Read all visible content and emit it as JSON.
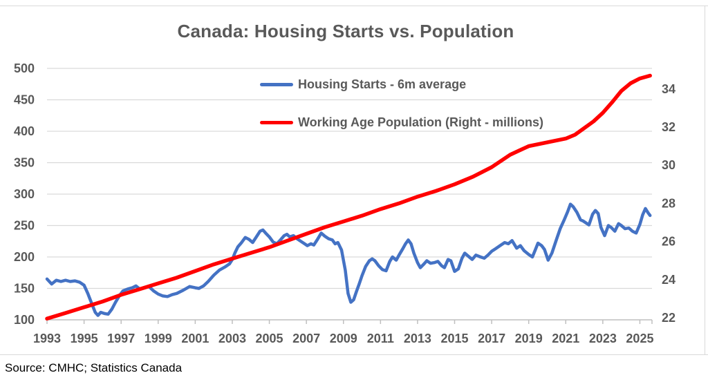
{
  "title": "Canada: Housing Starts vs. Population",
  "source_note": "Source: CMHC; Statistics Canada",
  "colors": {
    "housing_starts": "#4472C4",
    "population": "#FF0000",
    "gridline": "#D9D9D9",
    "axis_line": "#BFBFBF",
    "text": "#595959",
    "source_text": "#000000"
  },
  "legend": {
    "items": [
      {
        "label": "Housing Starts - 6m average",
        "color": "#4472C4"
      },
      {
        "label": "Working Age Population (Right - millions)",
        "color": "#FF0000"
      }
    ]
  },
  "axes": {
    "left": {
      "ticks": [
        100,
        150,
        200,
        250,
        300,
        350,
        400,
        450,
        500
      ]
    },
    "right": {
      "ticks": [
        22,
        24,
        26,
        28,
        30,
        32,
        34
      ]
    },
    "x": {
      "ticks": [
        1993,
        1995,
        1997,
        1999,
        2001,
        2003,
        2005,
        2007,
        2009,
        2011,
        2013,
        2015,
        2017,
        2019,
        2021,
        2023,
        2025
      ]
    }
  },
  "chart_data": {
    "type": "line",
    "title": "Canada: Housing Starts vs. Population",
    "grid": true,
    "legend_position": "top-center-inside",
    "x_range": [
      1993,
      2025.58
    ],
    "left_range": [
      100,
      500
    ],
    "right_range": [
      21.89,
      35.08
    ],
    "series": [
      {
        "name": "Housing Starts - 6m average",
        "axis": "left",
        "color": "#4472C4",
        "points": [
          [
            1993.0,
            165
          ],
          [
            1993.25,
            157
          ],
          [
            1993.5,
            163
          ],
          [
            1993.75,
            161
          ],
          [
            1994.0,
            163
          ],
          [
            1994.25,
            161
          ],
          [
            1994.5,
            162
          ],
          [
            1994.75,
            160
          ],
          [
            1995.0,
            155
          ],
          [
            1995.2,
            142
          ],
          [
            1995.4,
            127
          ],
          [
            1995.6,
            112
          ],
          [
            1995.75,
            107
          ],
          [
            1995.9,
            112
          ],
          [
            1996.1,
            110
          ],
          [
            1996.3,
            109
          ],
          [
            1996.5,
            117
          ],
          [
            1996.7,
            128
          ],
          [
            1996.9,
            138
          ],
          [
            1997.1,
            146
          ],
          [
            1997.35,
            149
          ],
          [
            1997.6,
            151
          ],
          [
            1997.8,
            154
          ],
          [
            1998.0,
            149
          ],
          [
            1998.25,
            151
          ],
          [
            1998.5,
            153
          ],
          [
            1998.75,
            146
          ],
          [
            1999.0,
            141
          ],
          [
            1999.25,
            138
          ],
          [
            1999.5,
            137
          ],
          [
            1999.75,
            140
          ],
          [
            2000.0,
            142
          ],
          [
            2000.35,
            147
          ],
          [
            2000.7,
            153
          ],
          [
            2001.0,
            151
          ],
          [
            2001.2,
            150
          ],
          [
            2001.45,
            154
          ],
          [
            2001.7,
            161
          ],
          [
            2002.0,
            171
          ],
          [
            2002.3,
            179
          ],
          [
            2002.6,
            184
          ],
          [
            2002.85,
            189
          ],
          [
            2003.0,
            196
          ],
          [
            2003.15,
            207
          ],
          [
            2003.3,
            216
          ],
          [
            2003.5,
            223
          ],
          [
            2003.7,
            231
          ],
          [
            2003.9,
            228
          ],
          [
            2004.1,
            223
          ],
          [
            2004.3,
            232
          ],
          [
            2004.5,
            241
          ],
          [
            2004.65,
            243
          ],
          [
            2004.8,
            238
          ],
          [
            2005.0,
            232
          ],
          [
            2005.2,
            224
          ],
          [
            2005.4,
            221
          ],
          [
            2005.6,
            227
          ],
          [
            2005.8,
            234
          ],
          [
            2005.95,
            236
          ],
          [
            2006.1,
            232
          ],
          [
            2006.3,
            234
          ],
          [
            2006.5,
            229
          ],
          [
            2006.7,
            225
          ],
          [
            2006.9,
            221
          ],
          [
            2007.05,
            218
          ],
          [
            2007.25,
            221
          ],
          [
            2007.4,
            219
          ],
          [
            2007.6,
            228
          ],
          [
            2007.8,
            238
          ],
          [
            2008.0,
            233
          ],
          [
            2008.2,
            229
          ],
          [
            2008.4,
            227
          ],
          [
            2008.55,
            221
          ],
          [
            2008.7,
            223
          ],
          [
            2008.9,
            211
          ],
          [
            2009.1,
            179
          ],
          [
            2009.25,
            142
          ],
          [
            2009.4,
            128
          ],
          [
            2009.55,
            132
          ],
          [
            2009.7,
            145
          ],
          [
            2009.85,
            157
          ],
          [
            2010.0,
            170
          ],
          [
            2010.2,
            185
          ],
          [
            2010.4,
            194
          ],
          [
            2010.55,
            197
          ],
          [
            2010.7,
            194
          ],
          [
            2010.9,
            186
          ],
          [
            2011.1,
            180
          ],
          [
            2011.3,
            178
          ],
          [
            2011.5,
            193
          ],
          [
            2011.65,
            200
          ],
          [
            2011.85,
            195
          ],
          [
            2012.0,
            203
          ],
          [
            2012.2,
            213
          ],
          [
            2012.35,
            221
          ],
          [
            2012.5,
            227
          ],
          [
            2012.65,
            221
          ],
          [
            2012.8,
            206
          ],
          [
            2013.0,
            191
          ],
          [
            2013.15,
            183
          ],
          [
            2013.35,
            189
          ],
          [
            2013.5,
            194
          ],
          [
            2013.7,
            190
          ],
          [
            2013.9,
            191
          ],
          [
            2014.1,
            193
          ],
          [
            2014.3,
            186
          ],
          [
            2014.45,
            183
          ],
          [
            2014.65,
            196
          ],
          [
            2014.8,
            194
          ],
          [
            2015.0,
            177
          ],
          [
            2015.2,
            181
          ],
          [
            2015.4,
            198
          ],
          [
            2015.55,
            206
          ],
          [
            2015.75,
            201
          ],
          [
            2015.95,
            196
          ],
          [
            2016.15,
            203
          ],
          [
            2016.4,
            200
          ],
          [
            2016.6,
            198
          ],
          [
            2016.8,
            203
          ],
          [
            2017.0,
            209
          ],
          [
            2017.2,
            213
          ],
          [
            2017.45,
            218
          ],
          [
            2017.7,
            223
          ],
          [
            2017.9,
            221
          ],
          [
            2018.1,
            226
          ],
          [
            2018.35,
            214
          ],
          [
            2018.55,
            218
          ],
          [
            2018.75,
            210
          ],
          [
            2019.0,
            204
          ],
          [
            2019.2,
            200
          ],
          [
            2019.35,
            211
          ],
          [
            2019.5,
            222
          ],
          [
            2019.7,
            218
          ],
          [
            2019.85,
            212
          ],
          [
            2020.05,
            195
          ],
          [
            2020.25,
            206
          ],
          [
            2020.5,
            228
          ],
          [
            2020.7,
            245
          ],
          [
            2020.9,
            258
          ],
          [
            2021.1,
            272
          ],
          [
            2021.25,
            284
          ],
          [
            2021.4,
            280
          ],
          [
            2021.6,
            271
          ],
          [
            2021.8,
            259
          ],
          [
            2021.95,
            257
          ],
          [
            2022.1,
            254
          ],
          [
            2022.25,
            251
          ],
          [
            2022.45,
            268
          ],
          [
            2022.6,
            274
          ],
          [
            2022.75,
            269
          ],
          [
            2022.9,
            247
          ],
          [
            2023.1,
            234
          ],
          [
            2023.3,
            250
          ],
          [
            2023.45,
            247
          ],
          [
            2023.65,
            241
          ],
          [
            2023.85,
            253
          ],
          [
            2024.0,
            250
          ],
          [
            2024.2,
            245
          ],
          [
            2024.4,
            246
          ],
          [
            2024.6,
            241
          ],
          [
            2024.8,
            238
          ],
          [
            2025.0,
            252
          ],
          [
            2025.15,
            267
          ],
          [
            2025.3,
            277
          ],
          [
            2025.45,
            270
          ],
          [
            2025.55,
            266
          ]
        ]
      },
      {
        "name": "Working Age Population (Right - millions)",
        "axis": "right",
        "color": "#FF0000",
        "points": [
          [
            1993.0,
            21.95
          ],
          [
            1994,
            22.25
          ],
          [
            1995,
            22.55
          ],
          [
            1996,
            22.85
          ],
          [
            1997,
            23.2
          ],
          [
            1998,
            23.5
          ],
          [
            1999,
            23.8
          ],
          [
            2000,
            24.1
          ],
          [
            2001,
            24.45
          ],
          [
            2002,
            24.8
          ],
          [
            2003,
            25.1
          ],
          [
            2004,
            25.4
          ],
          [
            2005,
            25.7
          ],
          [
            2006,
            26.05
          ],
          [
            2007,
            26.4
          ],
          [
            2008,
            26.75
          ],
          [
            2009,
            27.05
          ],
          [
            2010,
            27.35
          ],
          [
            2011,
            27.7
          ],
          [
            2012,
            28.0
          ],
          [
            2013,
            28.35
          ],
          [
            2014,
            28.65
          ],
          [
            2015,
            29.0
          ],
          [
            2016,
            29.4
          ],
          [
            2017,
            29.9
          ],
          [
            2018,
            30.55
          ],
          [
            2018.5,
            30.78
          ],
          [
            2019,
            31.0
          ],
          [
            2019.5,
            31.1
          ],
          [
            2020,
            31.2
          ],
          [
            2020.5,
            31.3
          ],
          [
            2021,
            31.4
          ],
          [
            2021.5,
            31.6
          ],
          [
            2022,
            31.95
          ],
          [
            2022.5,
            32.3
          ],
          [
            2023,
            32.75
          ],
          [
            2023.5,
            33.3
          ],
          [
            2024,
            33.9
          ],
          [
            2024.5,
            34.3
          ],
          [
            2025,
            34.55
          ],
          [
            2025.55,
            34.7
          ]
        ]
      }
    ]
  }
}
